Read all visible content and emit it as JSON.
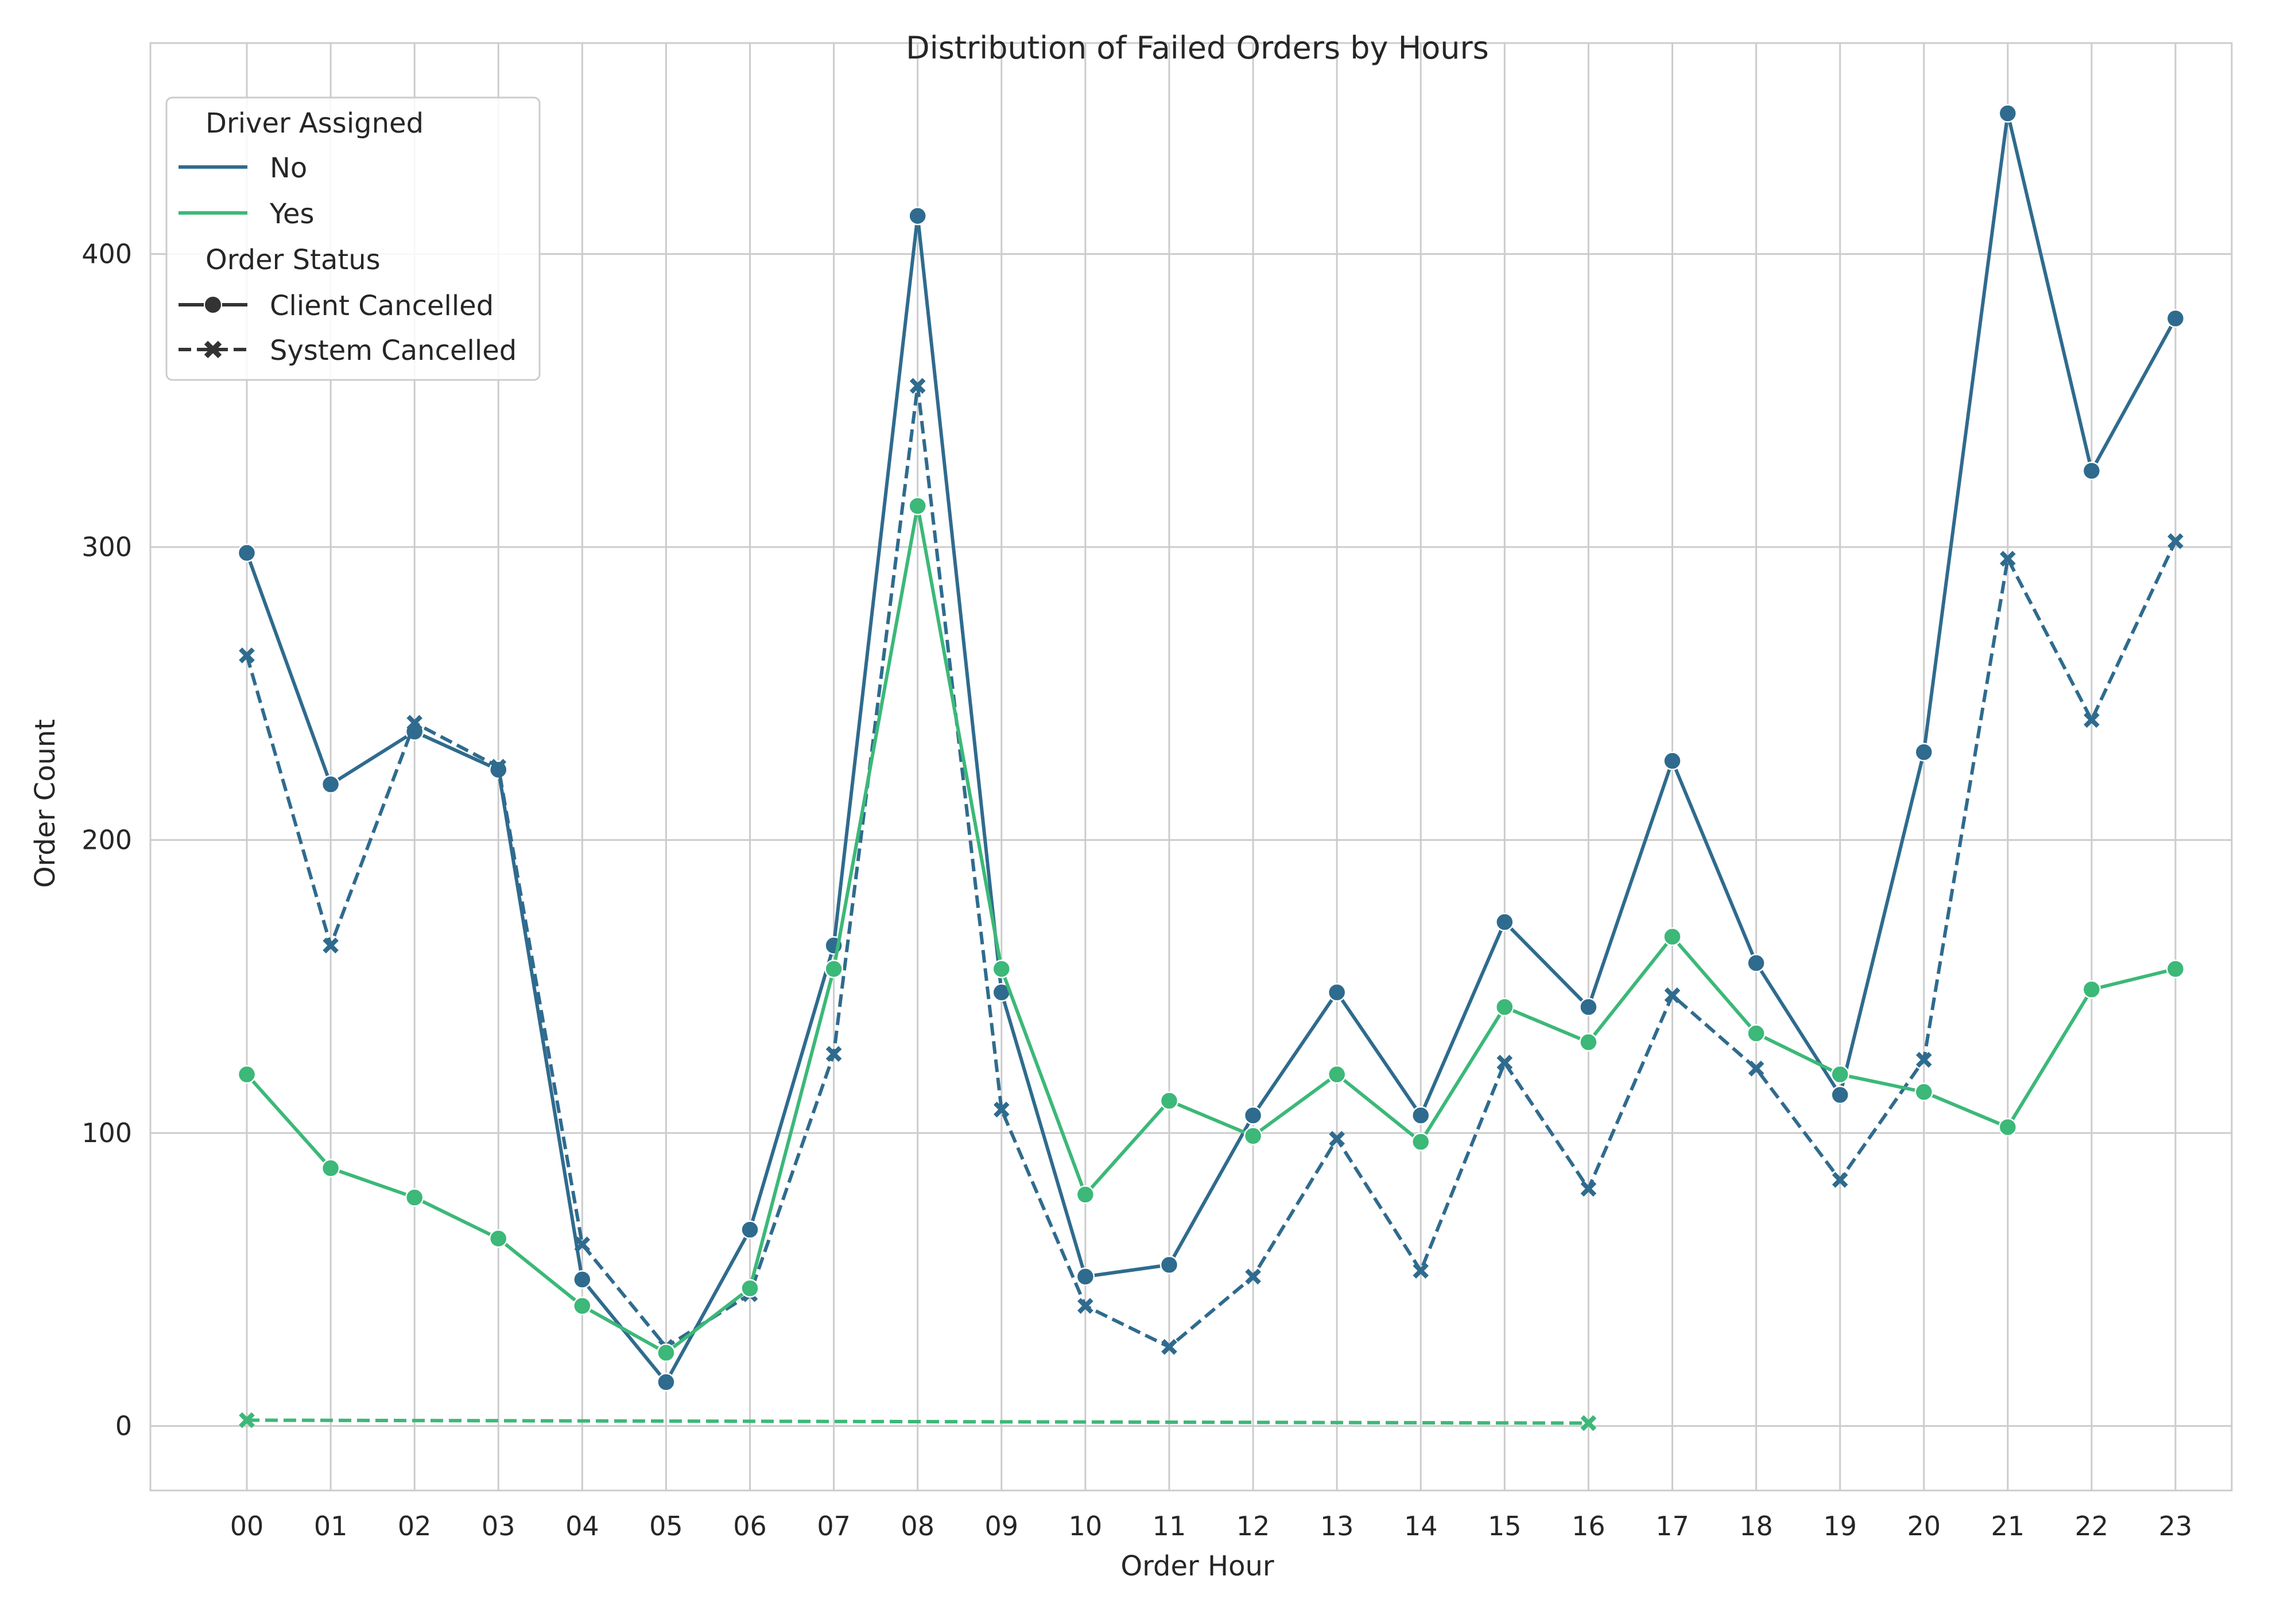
{
  "chart_data": {
    "type": "line",
    "title": "Distribution of Failed Orders by Hours",
    "xlabel": "Order Hour",
    "ylabel": "Order Count",
    "categories": [
      "00",
      "01",
      "02",
      "03",
      "04",
      "05",
      "06",
      "07",
      "08",
      "09",
      "10",
      "11",
      "12",
      "13",
      "14",
      "15",
      "16",
      "17",
      "18",
      "19",
      "20",
      "21",
      "22",
      "23"
    ],
    "ylim": [
      -22,
      472
    ],
    "yticks": [
      0,
      100,
      200,
      300,
      400
    ],
    "grid": true,
    "legend_position": "top-left",
    "legend": {
      "title_hue": "Driver Assigned",
      "hue_entries": [
        {
          "label": "No",
          "color": "#2f6b8e"
        },
        {
          "label": "Yes",
          "color": "#3cb878"
        }
      ],
      "title_style": "Order Status",
      "style_entries": [
        {
          "label": "Client Cancelled",
          "dash": "solid",
          "marker": "circle"
        },
        {
          "label": "System Cancelled",
          "dash": "dashed",
          "marker": "x"
        }
      ]
    },
    "series": [
      {
        "name": "No / Client Cancelled",
        "color": "#2f6b8e",
        "dash": "solid",
        "marker": "circle",
        "values": [
          298,
          219,
          237,
          224,
          50,
          15,
          67,
          164,
          413,
          148,
          51,
          55,
          106,
          148,
          106,
          172,
          143,
          227,
          158,
          113,
          230,
          448,
          326,
          378
        ]
      },
      {
        "name": "No / System Cancelled",
        "color": "#2f6b8e",
        "dash": "dashed",
        "marker": "x",
        "values": [
          263,
          164,
          240,
          225,
          62,
          27,
          45,
          127,
          355,
          108,
          41,
          27,
          51,
          98,
          53,
          124,
          81,
          147,
          122,
          84,
          125,
          296,
          241,
          302
        ]
      },
      {
        "name": "Yes / Client Cancelled",
        "color": "#3cb878",
        "dash": "solid",
        "marker": "circle",
        "values": [
          120,
          88,
          78,
          64,
          41,
          25,
          47,
          156,
          314,
          156,
          79,
          111,
          99,
          120,
          97,
          143,
          131,
          167,
          134,
          120,
          114,
          102,
          149,
          156
        ]
      },
      {
        "name": "Yes / System Cancelled",
        "color": "#3cb878",
        "dash": "dashed",
        "marker": "x",
        "values": [
          2,
          null,
          null,
          null,
          null,
          null,
          null,
          null,
          null,
          null,
          null,
          null,
          null,
          null,
          null,
          null,
          1,
          null,
          null,
          null,
          null,
          null,
          null,
          null
        ]
      }
    ]
  }
}
